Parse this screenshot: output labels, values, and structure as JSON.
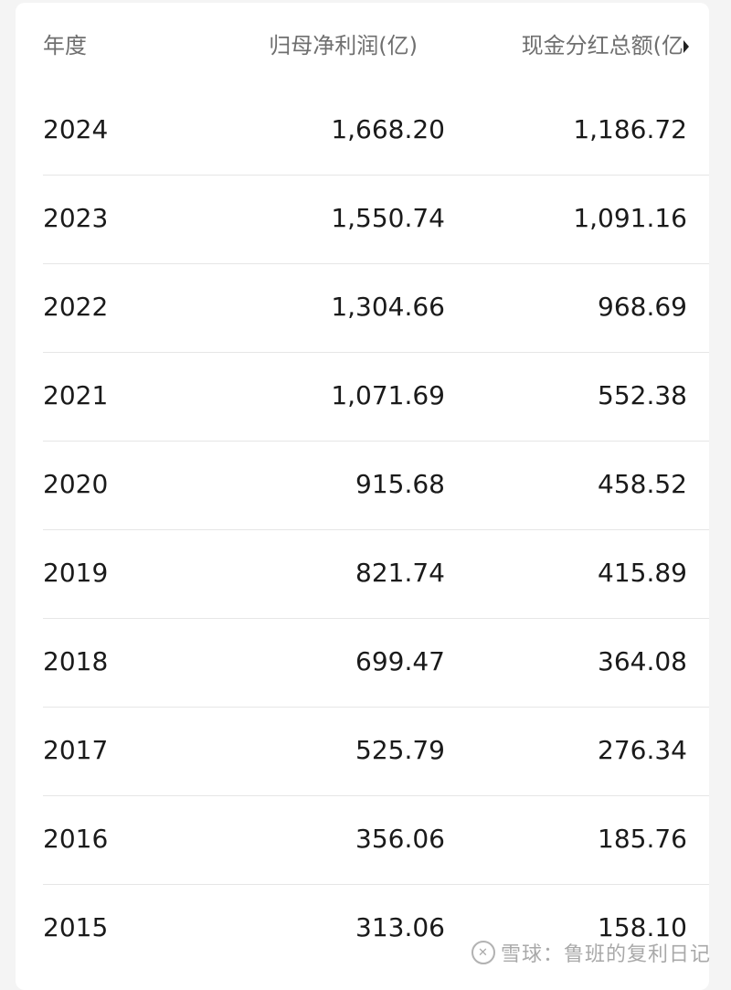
{
  "table": {
    "headers": [
      "年度",
      "归母净利润(亿)",
      "现金分红总额(亿"
    ],
    "rows": [
      [
        "2024",
        "1,668.20",
        "1,186.72"
      ],
      [
        "2023",
        "1,550.74",
        "1,091.16"
      ],
      [
        "2022",
        "1,304.66",
        "968.69"
      ],
      [
        "2021",
        "1,071.69",
        "552.38"
      ],
      [
        "2020",
        "915.68",
        "458.52"
      ],
      [
        "2019",
        "821.74",
        "415.89"
      ],
      [
        "2018",
        "699.47",
        "364.08"
      ],
      [
        "2017",
        "525.79",
        "276.34"
      ],
      [
        "2016",
        "356.06",
        "185.76"
      ],
      [
        "2015",
        "313.06",
        "158.10"
      ]
    ]
  },
  "watermark": {
    "text": "雪球：鲁班的复利日记",
    "icon": "xueqiu-logo-icon"
  }
}
